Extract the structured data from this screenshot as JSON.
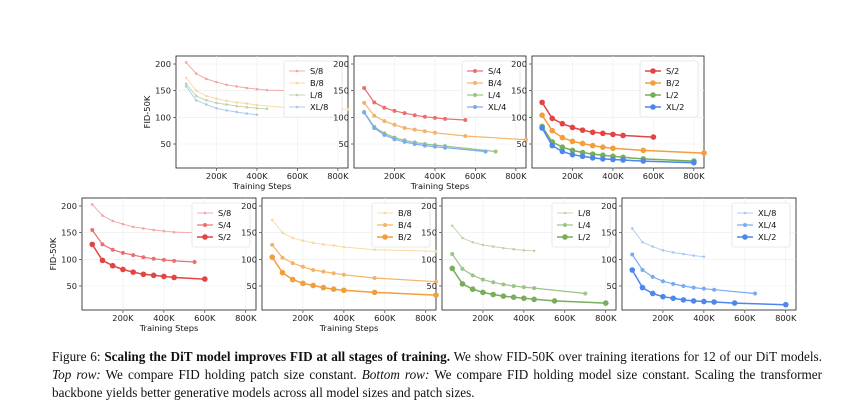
{
  "caption": {
    "figure_label": "Figure 6:",
    "bold_title": "Scaling the DiT model improves FID at all stages of training.",
    "text1": "We show FID-50K over training iterations for 12 of our DiT models.",
    "top_label": "Top row:",
    "text2": "We compare FID holding patch size constant.",
    "bottom_label": "Bottom row:",
    "text3": "We compare FID holding model size constant. Scaling the transformer backbone yields better generative models across all model sizes and patch sizes."
  },
  "chart_data": [
    {
      "type": "line",
      "row": "top",
      "xlabel": "Training Steps",
      "ylabel": "FID-50K",
      "xticks": [
        200000,
        400000,
        600000,
        800000
      ],
      "xtick_labels": [
        "200K",
        "400K",
        "600K",
        "800K"
      ],
      "yticks": [
        50,
        100,
        150,
        200
      ],
      "xlim": [
        0,
        850000
      ],
      "ylim": [
        5,
        215
      ],
      "series": [
        {
          "name": "S/8",
          "color": "#f5a3a3",
          "x": [
            50000,
            100000,
            150000,
            200000,
            250000,
            300000,
            350000,
            400000,
            450000,
            550000
          ],
          "y": [
            203,
            182,
            172,
            166,
            161,
            158,
            155,
            153,
            151,
            150
          ]
        },
        {
          "name": "B/8",
          "color": "#f8d7a0",
          "x": [
            50000,
            100000,
            150000,
            200000,
            250000,
            300000,
            350000,
            400000,
            550000,
            850000
          ],
          "y": [
            174,
            150,
            140,
            135,
            131,
            128,
            126,
            123,
            118,
            115
          ]
        },
        {
          "name": "L/8",
          "color": "#bcd4a6",
          "x": [
            50000,
            100000,
            150000,
            200000,
            250000,
            300000,
            350000,
            400000,
            450000
          ],
          "y": [
            163,
            140,
            132,
            127,
            124,
            121,
            119,
            117,
            116
          ]
        },
        {
          "name": "XL/8",
          "color": "#a8c8f3",
          "x": [
            50000,
            100000,
            150000,
            200000,
            250000,
            300000,
            350000,
            400000
          ],
          "y": [
            158,
            132,
            124,
            117,
            113,
            110,
            107,
            105
          ]
        }
      ]
    },
    {
      "type": "line",
      "row": "top",
      "xlabel": "Training Steps",
      "ylabel": "",
      "xticks": [
        200000,
        400000,
        600000,
        800000
      ],
      "xtick_labels": [
        "200K",
        "400K",
        "600K",
        "800K"
      ],
      "yticks": [
        50,
        100,
        150,
        200
      ],
      "xlim": [
        0,
        850000
      ],
      "ylim": [
        5,
        215
      ],
      "series": [
        {
          "name": "S/4",
          "color": "#ec6f6f",
          "x": [
            50000,
            100000,
            150000,
            200000,
            250000,
            300000,
            350000,
            400000,
            450000,
            550000
          ],
          "y": [
            155,
            128,
            118,
            112,
            108,
            104,
            101,
            99,
            97,
            95
          ]
        },
        {
          "name": "B/4",
          "color": "#f4b36a",
          "x": [
            50000,
            100000,
            150000,
            200000,
            250000,
            300000,
            350000,
            400000,
            550000,
            850000
          ],
          "y": [
            127,
            103,
            93,
            86,
            80,
            77,
            74,
            71,
            65,
            58
          ]
        },
        {
          "name": "L/4",
          "color": "#9cc388",
          "x": [
            50000,
            100000,
            150000,
            200000,
            250000,
            300000,
            350000,
            400000,
            450000,
            700000
          ],
          "y": [
            110,
            82,
            70,
            62,
            57,
            53,
            50,
            48,
            46,
            36
          ]
        },
        {
          "name": "XL/4",
          "color": "#7aaaf0",
          "x": [
            50000,
            100000,
            150000,
            200000,
            250000,
            300000,
            350000,
            400000,
            450000,
            650000
          ],
          "y": [
            109,
            80,
            67,
            59,
            54,
            50,
            47,
            45,
            43,
            36
          ]
        }
      ]
    },
    {
      "type": "line",
      "row": "top",
      "xlabel": "",
      "ylabel": "",
      "xticks": [
        200000,
        400000,
        600000,
        800000
      ],
      "xtick_labels": [
        "200K",
        "400K",
        "600K",
        "800K"
      ],
      "yticks": [
        50,
        100,
        150,
        200
      ],
      "xlim": [
        0,
        850000
      ],
      "ylim": [
        5,
        215
      ],
      "series": [
        {
          "name": "S/2",
          "color": "#e34343",
          "x": [
            50000,
            100000,
            150000,
            200000,
            250000,
            300000,
            350000,
            400000,
            450000,
            600000
          ],
          "y": [
            128,
            98,
            88,
            81,
            76,
            72,
            70,
            68,
            66,
            63
          ]
        },
        {
          "name": "B/2",
          "color": "#f29e3c",
          "x": [
            50000,
            100000,
            150000,
            200000,
            250000,
            300000,
            350000,
            400000,
            550000,
            850000
          ],
          "y": [
            104,
            75,
            62,
            55,
            51,
            47,
            44,
            42,
            38,
            33
          ]
        },
        {
          "name": "L/2",
          "color": "#78ad5a",
          "x": [
            50000,
            100000,
            150000,
            200000,
            250000,
            300000,
            350000,
            400000,
            450000,
            550000,
            800000
          ],
          "y": [
            83,
            54,
            44,
            38,
            34,
            31,
            29,
            27,
            25,
            22,
            18
          ]
        },
        {
          "name": "XL/2",
          "color": "#4f86ec",
          "x": [
            50000,
            100000,
            150000,
            200000,
            250000,
            300000,
            350000,
            400000,
            450000,
            550000,
            800000
          ],
          "y": [
            80,
            47,
            36,
            30,
            27,
            24,
            22,
            21,
            20,
            18,
            15
          ]
        }
      ]
    },
    {
      "type": "line",
      "row": "bottom",
      "xlabel": "Training Steps",
      "ylabel": "FID-50K",
      "xticks": [
        200000,
        400000,
        600000,
        800000
      ],
      "xtick_labels": [
        "200K",
        "400K",
        "600K",
        "800K"
      ],
      "yticks": [
        50,
        100,
        150,
        200
      ],
      "xlim": [
        0,
        850000
      ],
      "ylim": [
        5,
        215
      ],
      "series": [
        {
          "name": "S/8",
          "color": "#f5a3a3",
          "x": [
            50000,
            100000,
            150000,
            200000,
            250000,
            300000,
            350000,
            400000,
            450000,
            550000
          ],
          "y": [
            203,
            182,
            172,
            166,
            161,
            158,
            155,
            153,
            151,
            150
          ]
        },
        {
          "name": "S/4",
          "color": "#ec6f6f",
          "x": [
            50000,
            100000,
            150000,
            200000,
            250000,
            300000,
            350000,
            400000,
            450000,
            550000
          ],
          "y": [
            155,
            128,
            118,
            112,
            108,
            104,
            101,
            99,
            97,
            95
          ]
        },
        {
          "name": "S/2",
          "color": "#e34343",
          "x": [
            50000,
            100000,
            150000,
            200000,
            250000,
            300000,
            350000,
            400000,
            450000,
            600000
          ],
          "y": [
            128,
            98,
            88,
            81,
            76,
            72,
            70,
            68,
            66,
            63
          ]
        }
      ]
    },
    {
      "type": "line",
      "row": "bottom",
      "xlabel": "Training Steps",
      "ylabel": "",
      "xticks": [
        200000,
        400000,
        600000,
        800000
      ],
      "xtick_labels": [
        "200K",
        "400K",
        "600K",
        "800K"
      ],
      "yticks": [
        50,
        100,
        150,
        200
      ],
      "xlim": [
        0,
        850000
      ],
      "ylim": [
        5,
        215
      ],
      "series": [
        {
          "name": "B/8",
          "color": "#f8d7a0",
          "x": [
            50000,
            100000,
            150000,
            200000,
            250000,
            300000,
            350000,
            400000,
            550000,
            850000
          ],
          "y": [
            174,
            150,
            140,
            135,
            131,
            128,
            126,
            123,
            118,
            115
          ]
        },
        {
          "name": "B/4",
          "color": "#f4b36a",
          "x": [
            50000,
            100000,
            150000,
            200000,
            250000,
            300000,
            350000,
            400000,
            550000,
            850000
          ],
          "y": [
            127,
            103,
            93,
            86,
            80,
            77,
            74,
            71,
            65,
            58
          ]
        },
        {
          "name": "B/2",
          "color": "#f29e3c",
          "x": [
            50000,
            100000,
            150000,
            200000,
            250000,
            300000,
            350000,
            400000,
            550000,
            850000
          ],
          "y": [
            104,
            75,
            62,
            55,
            51,
            47,
            44,
            42,
            38,
            33
          ]
        }
      ]
    },
    {
      "type": "line",
      "row": "bottom",
      "xlabel": "",
      "ylabel": "",
      "xticks": [
        200000,
        400000,
        600000,
        800000
      ],
      "xtick_labels": [
        "200K",
        "400K",
        "600K",
        "800K"
      ],
      "yticks": [
        50,
        100,
        150,
        200
      ],
      "xlim": [
        0,
        850000
      ],
      "ylim": [
        5,
        215
      ],
      "series": [
        {
          "name": "L/8",
          "color": "#bcd4a6",
          "x": [
            50000,
            100000,
            150000,
            200000,
            250000,
            300000,
            350000,
            400000,
            450000
          ],
          "y": [
            163,
            140,
            132,
            127,
            124,
            121,
            119,
            117,
            116
          ]
        },
        {
          "name": "L/4",
          "color": "#9cc388",
          "x": [
            50000,
            100000,
            150000,
            200000,
            250000,
            300000,
            350000,
            400000,
            450000,
            700000
          ],
          "y": [
            110,
            82,
            70,
            62,
            57,
            53,
            50,
            48,
            46,
            36
          ]
        },
        {
          "name": "L/2",
          "color": "#78ad5a",
          "x": [
            50000,
            100000,
            150000,
            200000,
            250000,
            300000,
            350000,
            400000,
            450000,
            550000,
            800000
          ],
          "y": [
            83,
            54,
            44,
            38,
            34,
            31,
            29,
            27,
            25,
            22,
            18
          ]
        }
      ]
    },
    {
      "type": "line",
      "row": "bottom",
      "xlabel": "",
      "ylabel": "",
      "xticks": [
        200000,
        400000,
        600000,
        800000
      ],
      "xtick_labels": [
        "200K",
        "400K",
        "600K",
        "800K"
      ],
      "yticks": [
        50,
        100,
        150,
        200
      ],
      "xlim": [
        0,
        850000
      ],
      "ylim": [
        5,
        215
      ],
      "series": [
        {
          "name": "XL/8",
          "color": "#a8c8f3",
          "x": [
            50000,
            100000,
            150000,
            200000,
            250000,
            300000,
            350000,
            400000
          ],
          "y": [
            158,
            132,
            124,
            117,
            113,
            110,
            107,
            105
          ]
        },
        {
          "name": "XL/4",
          "color": "#7aaaf0",
          "x": [
            50000,
            100000,
            150000,
            200000,
            250000,
            300000,
            350000,
            400000,
            450000,
            650000
          ],
          "y": [
            109,
            80,
            67,
            59,
            54,
            50,
            47,
            45,
            43,
            36
          ]
        },
        {
          "name": "XL/2",
          "color": "#4f86ec",
          "x": [
            50000,
            100000,
            150000,
            200000,
            250000,
            300000,
            350000,
            400000,
            450000,
            550000,
            800000
          ],
          "y": [
            80,
            47,
            36,
            30,
            27,
            24,
            22,
            21,
            20,
            18,
            15
          ]
        }
      ]
    }
  ]
}
